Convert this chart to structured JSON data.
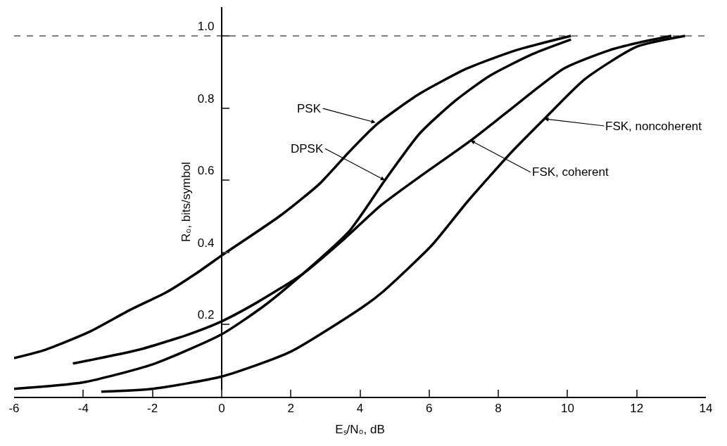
{
  "chart_data": {
    "type": "line",
    "xlabel": "Eₛ/N₀, dB",
    "ylabel": "R₀, bits/symbol",
    "xlim": [
      -6,
      14
    ],
    "xticks": [
      -6,
      -4,
      -2,
      0,
      2,
      4,
      6,
      8,
      10,
      12,
      14
    ],
    "ylim": [
      0,
      1.08
    ],
    "yticks": [
      0.2,
      0.4,
      0.6,
      0.8,
      {
        "value": 1.0,
        "label": "1.0"
      }
    ],
    "grid": false,
    "marker": "none",
    "line_style": "solid",
    "series": [
      {
        "color": "#000000",
        "x": [
          -6.0,
          -5.1,
          -3.82,
          -2.66,
          -1.59,
          -0.7,
          0.04,
          1.67,
          2.83,
          3.7,
          4.5,
          5.73,
          7.1,
          8.5,
          10.1
        ],
        "values": [
          0.107,
          0.13,
          0.18,
          0.24,
          0.29,
          0.344,
          0.394,
          0.5,
          0.59,
          0.68,
          0.756,
          0.84,
          0.91,
          0.96,
          1.0
        ]
      },
      {
        "color": "#000000",
        "x": [
          -6.0,
          -4.0,
          -1.99,
          0,
          1.2,
          2.34,
          3.7,
          4.72,
          5.73,
          6.75,
          7.76,
          9.0,
          10.1
        ],
        "values": [
          0.022,
          0.04,
          0.09,
          0.173,
          0.25,
          0.34,
          0.46,
          0.6,
          0.73,
          0.82,
          0.89,
          0.95,
          0.99
        ]
      },
      {
        "color": "#000000",
        "x": [
          -4.3,
          -2.4,
          -1.04,
          0,
          1.0,
          2.34,
          3.55,
          4.6,
          5.73,
          7.2,
          8.4,
          9.9,
          11.2,
          12.0,
          13.0
        ],
        "values": [
          0.092,
          0.13,
          0.17,
          0.209,
          0.26,
          0.34,
          0.438,
          0.53,
          0.61,
          0.71,
          0.8,
          0.91,
          0.96,
          0.98,
          1.0
        ]
      },
      {
        "color": "#000000",
        "x": [
          -3.48,
          -2.0,
          0,
          2.0,
          4.1,
          4.65,
          6.08,
          7.1,
          8.4,
          9.33,
          10.5,
          12.0,
          13.4
        ],
        "values": [
          0.014,
          0.022,
          0.056,
          0.125,
          0.25,
          0.29,
          0.42,
          0.54,
          0.68,
          0.77,
          0.88,
          0.97,
          1.0
        ]
      }
    ],
    "ref_lines": [
      {
        "axis": "y",
        "value": 1.0,
        "line_style": "dashed",
        "color": "#000000"
      }
    ],
    "annotations": [
      {
        "text": "PSK",
        "x": 4.45,
        "y": 0.76
      },
      {
        "text": "DPSK",
        "x": 4.72,
        "y": 0.6
      },
      {
        "text": "FSK, coherent",
        "x": 7.2,
        "y": 0.71
      },
      {
        "text": "FSK, noncoherent",
        "x": 9.33,
        "y": 0.77
      }
    ]
  }
}
